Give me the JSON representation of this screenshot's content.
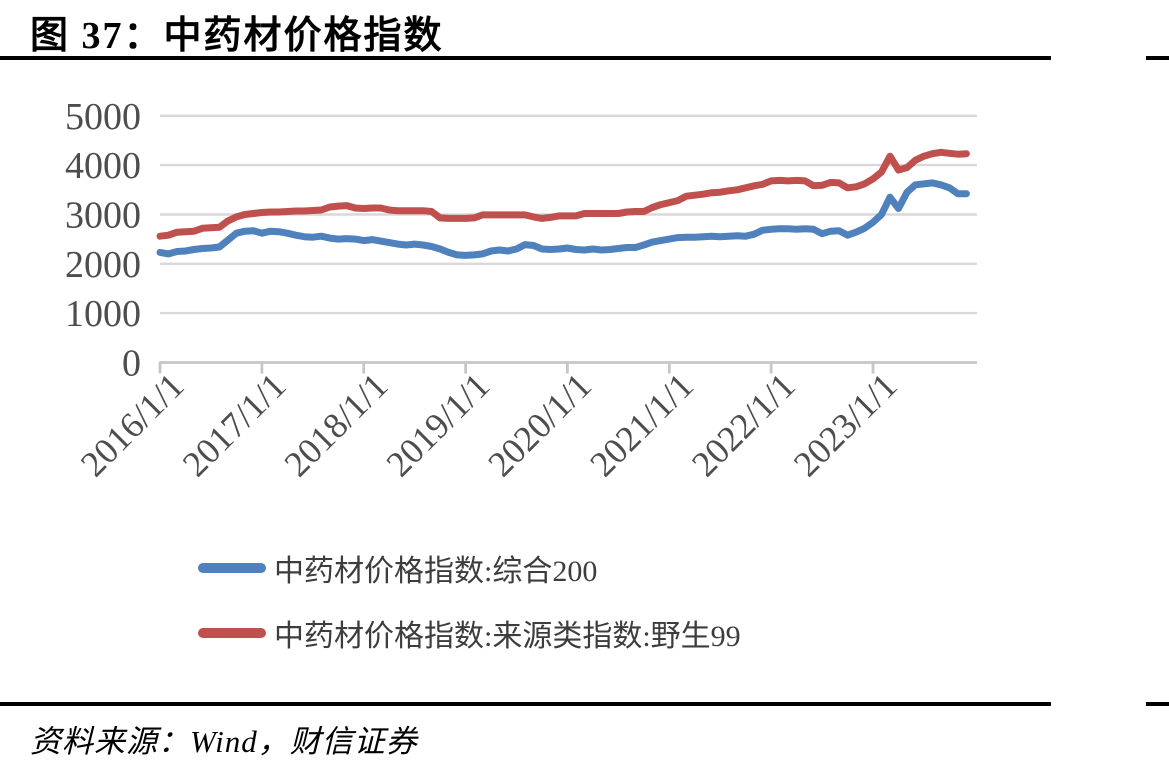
{
  "figure": {
    "title": "图 37：中药材价格指数",
    "source": "资料来源：Wind，财信证券"
  },
  "colors": {
    "series1": "#4F81BD",
    "series2": "#C0504D",
    "gridline": "#D9D9D9",
    "axis_line": "#C6C6C6",
    "rule": "#000000"
  },
  "legend": [
    {
      "label": "中药材价格指数:综合200",
      "color": "#4F81BD"
    },
    {
      "label": "中药材价格指数:来源类指数:野生99",
      "color": "#C0504D"
    }
  ],
  "chart_data": {
    "type": "line",
    "title": "中药材价格指数",
    "xlabel": "",
    "ylabel": "",
    "ylim": [
      0,
      5000
    ],
    "y_ticks": [
      0,
      1000,
      2000,
      3000,
      4000,
      5000
    ],
    "x_tick_labels": [
      "2016/1/1",
      "2017/1/1",
      "2018/1/1",
      "2019/1/1",
      "2020/1/1",
      "2021/1/1",
      "2022/1/1",
      "2023/1/1"
    ],
    "x_frequency": "monthly",
    "x_range": "2016/1 - 2023/12",
    "grid": "horizontal",
    "legend_position": "bottom-left",
    "series": [
      {
        "name": "中药材价格指数:综合200",
        "color": "#4F81BD",
        "values": [
          2230,
          2200,
          2250,
          2260,
          2290,
          2310,
          2320,
          2340,
          2480,
          2620,
          2660,
          2670,
          2620,
          2660,
          2650,
          2620,
          2580,
          2550,
          2540,
          2560,
          2520,
          2500,
          2510,
          2500,
          2470,
          2490,
          2460,
          2430,
          2400,
          2380,
          2400,
          2380,
          2350,
          2300,
          2230,
          2180,
          2170,
          2180,
          2200,
          2260,
          2280,
          2260,
          2300,
          2390,
          2370,
          2300,
          2290,
          2300,
          2320,
          2290,
          2280,
          2300,
          2280,
          2290,
          2310,
          2330,
          2330,
          2380,
          2440,
          2470,
          2500,
          2530,
          2540,
          2540,
          2550,
          2560,
          2550,
          2560,
          2570,
          2560,
          2600,
          2680,
          2700,
          2710,
          2710,
          2700,
          2710,
          2700,
          2610,
          2660,
          2670,
          2580,
          2640,
          2720,
          2840,
          3000,
          3350,
          3120,
          3450,
          3600,
          3620,
          3640,
          3600,
          3540,
          3420,
          3420
        ]
      },
      {
        "name": "中药材价格指数:来源类指数:野生99",
        "color": "#C0504D",
        "values": [
          2560,
          2580,
          2640,
          2650,
          2660,
          2720,
          2730,
          2740,
          2870,
          2950,
          3000,
          3020,
          3040,
          3050,
          3050,
          3060,
          3070,
          3070,
          3080,
          3090,
          3150,
          3170,
          3180,
          3130,
          3120,
          3130,
          3130,
          3090,
          3075,
          3075,
          3075,
          3075,
          3060,
          2930,
          2920,
          2920,
          2920,
          2930,
          2990,
          2990,
          2990,
          2990,
          2990,
          2990,
          2950,
          2920,
          2940,
          2970,
          2970,
          2970,
          3020,
          3020,
          3020,
          3020,
          3020,
          3050,
          3060,
          3060,
          3140,
          3200,
          3240,
          3280,
          3370,
          3390,
          3410,
          3440,
          3450,
          3480,
          3500,
          3540,
          3580,
          3610,
          3680,
          3690,
          3680,
          3690,
          3680,
          3580,
          3590,
          3650,
          3640,
          3540,
          3560,
          3620,
          3720,
          3860,
          4180,
          3900,
          3950,
          4100,
          4180,
          4230,
          4260,
          4240,
          4220,
          4230
        ]
      }
    ]
  }
}
